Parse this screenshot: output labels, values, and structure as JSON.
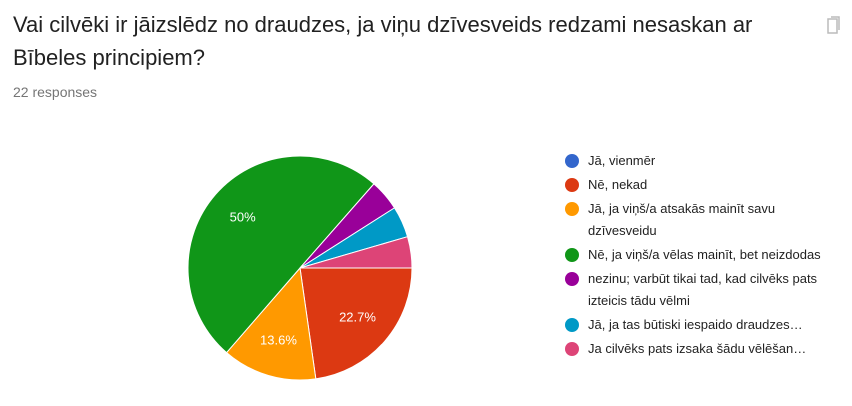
{
  "chart_data": {
    "type": "pie",
    "title": "Vai cilvēki ir jāizslēdz no draudzes, ja viņu dzīvesveids redzami nesaskan ar Bībeles principiem?",
    "subtitle": "22 responses",
    "series": [
      {
        "name": "Jā, vienmēr",
        "color": "#3366cc"
      },
      {
        "name": "Nē, nekad",
        "color": "#dc3912"
      },
      {
        "name": "Jā, ja viņš/a atsakās mainīt savu dzīvesveidu",
        "color": "#ff9900"
      },
      {
        "name": "Nē, ja viņš/a vēlas mainīt, bet neizdodas",
        "color": "#109618"
      },
      {
        "name": "nezinu; varbūt tikai tad, kad cilvēks pats izteicis tādu vēlmi",
        "color": "#990099"
      },
      {
        "name": "Jā, ja tas būtiski iespaido draudzes…",
        "color": "#0099c6"
      },
      {
        "name": "Ja cilvēks pats izsaka šādu vēlēšan…",
        "color": "#dd4477"
      }
    ],
    "values": [
      0,
      22.7,
      13.6,
      50,
      4.5,
      4.5,
      4.5
    ],
    "value_labels": [
      null,
      "22.7%",
      "13.6%",
      "50%",
      null,
      null,
      null
    ]
  }
}
